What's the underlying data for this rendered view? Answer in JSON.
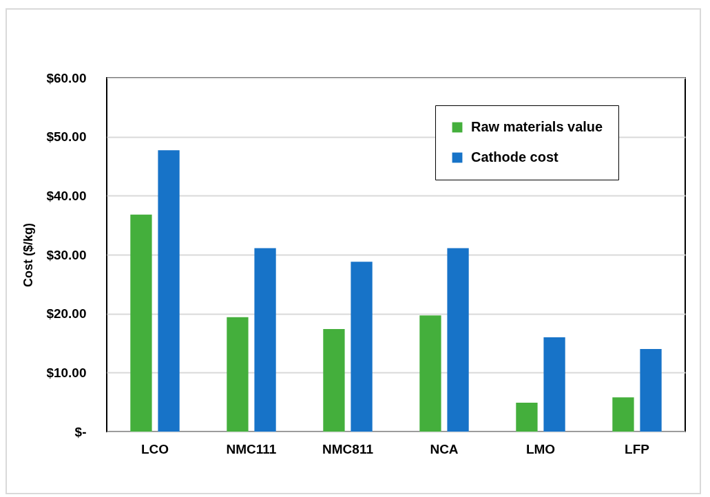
{
  "chart_data": {
    "type": "bar",
    "ylabel": "Cost ($/kg)",
    "categories": [
      "LCO",
      "NMC111",
      "NMC811",
      "NCA",
      "LMO",
      "LFP"
    ],
    "series": [
      {
        "name": "Raw materials value",
        "color": "#44af3c",
        "values": [
          36.8,
          19.4,
          17.4,
          19.7,
          4.9,
          5.8
        ]
      },
      {
        "name": "Cathode cost",
        "color": "#1773c8",
        "values": [
          47.7,
          31.1,
          28.8,
          31.1,
          16.0,
          14.0
        ]
      }
    ],
    "ylim": [
      0,
      60
    ],
    "yticks": [
      {
        "value": 0,
        "label": "$-"
      },
      {
        "value": 10,
        "label": "$10.00"
      },
      {
        "value": 20,
        "label": "$20.00"
      },
      {
        "value": 30,
        "label": "$30.00"
      },
      {
        "value": 40,
        "label": "$40.00"
      },
      {
        "value": 50,
        "label": "$50.00"
      },
      {
        "value": 60,
        "label": "$60.00"
      }
    ],
    "grid": "y",
    "legend": "top right"
  }
}
